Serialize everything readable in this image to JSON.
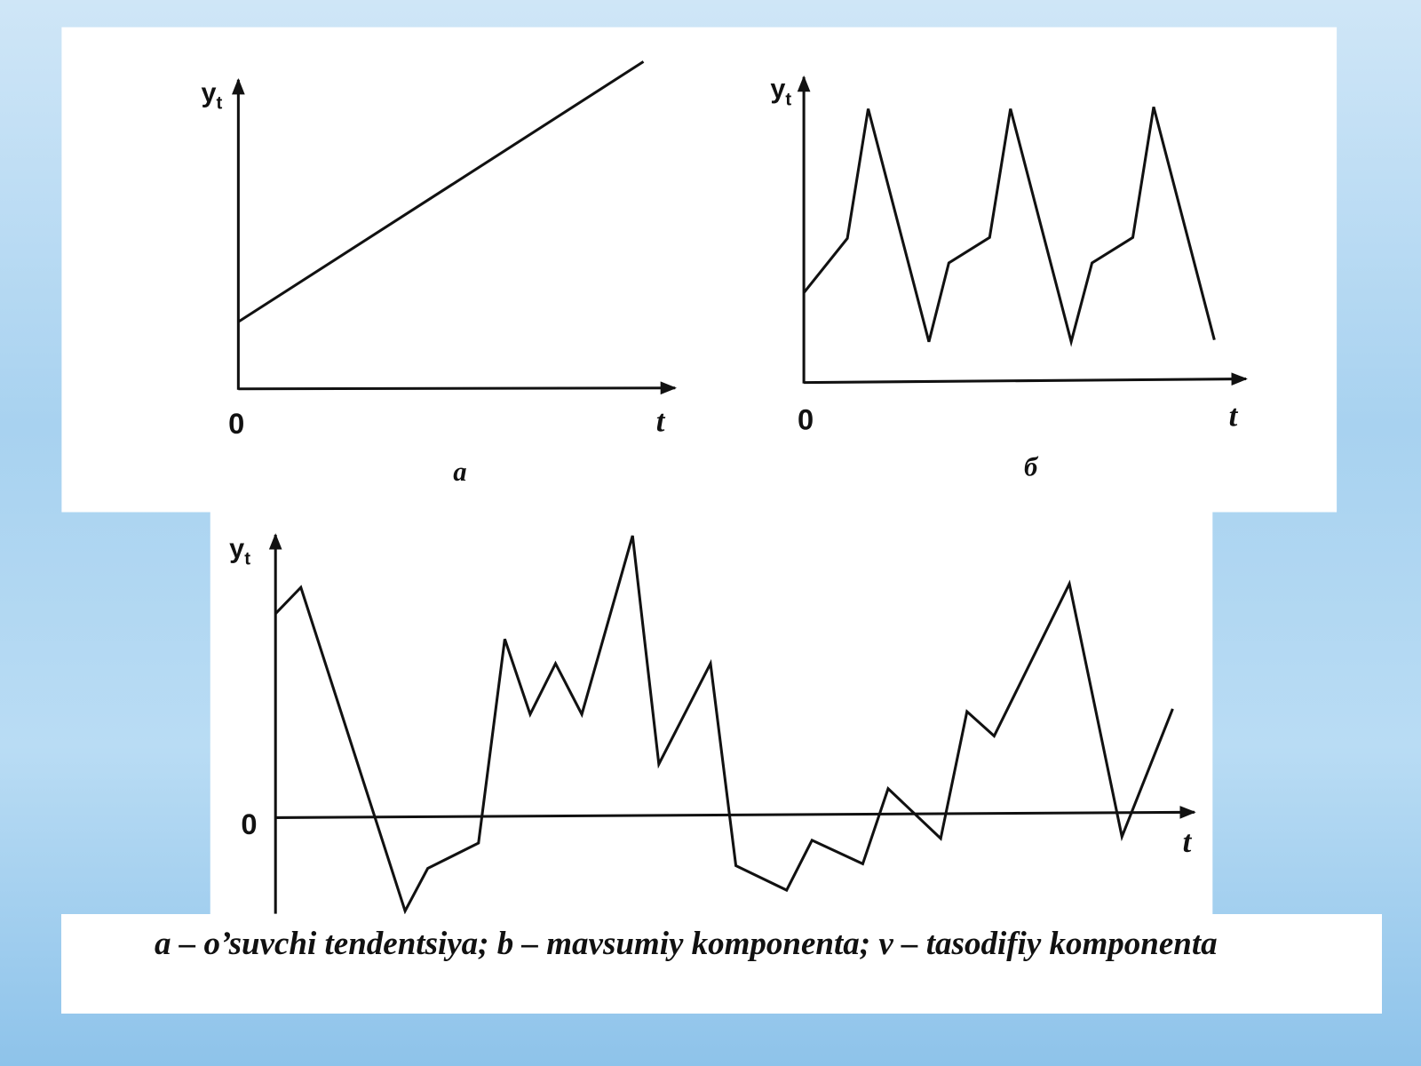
{
  "panels": [
    {
      "y_label": "y",
      "y_subscript": "t",
      "origin": "0",
      "x_label": "t",
      "caption": "a"
    },
    {
      "y_label": "y",
      "y_subscript": "t",
      "origin": "0",
      "x_label": "t",
      "caption": "б"
    },
    {
      "y_label": "y",
      "y_subscript": "t",
      "origin": "0",
      "x_label": "t"
    }
  ],
  "caption": {
    "text": "a – o’suvchi tendentsiya; b – mavsumiy komponenta; v – tasodifiy komponenta"
  }
}
